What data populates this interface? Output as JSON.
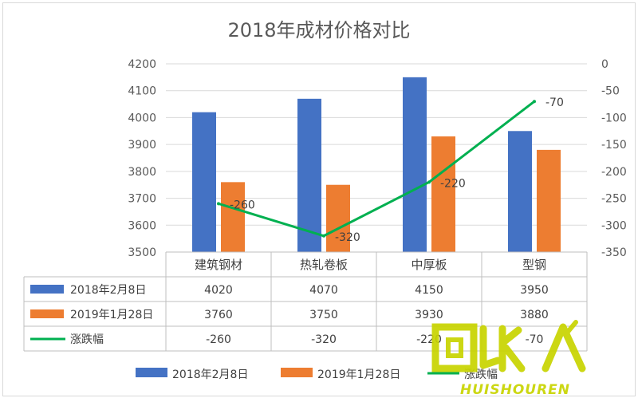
{
  "chart_data": {
    "type": "bar",
    "title": "2018年成材价格对比",
    "categories": [
      "建筑钢材",
      "热轧卷板",
      "中厚板",
      "型钢"
    ],
    "series": [
      {
        "name": "2018年2月8日",
        "kind": "bar",
        "axis": "left",
        "color": "#4472c4",
        "values": [
          4020,
          4070,
          4150,
          3950
        ]
      },
      {
        "name": "2019年1月28日",
        "kind": "bar",
        "axis": "left",
        "color": "#ed7d31",
        "values": [
          3760,
          3750,
          3930,
          3880
        ]
      },
      {
        "name": "涨跌幅",
        "kind": "line",
        "axis": "right",
        "color": "#00b050",
        "values": [
          -260,
          -320,
          -220,
          -70
        ]
      }
    ],
    "ylim_left": [
      3500,
      4200
    ],
    "yticks_left": [
      3500,
      3600,
      3700,
      3800,
      3900,
      4000,
      4100,
      4200
    ],
    "ylim_right": [
      -350,
      0
    ],
    "yticks_right": [
      0,
      -50,
      -100,
      -150,
      -200,
      -250,
      -300,
      -350
    ],
    "data_labels": [
      "-260",
      "-320",
      "-220",
      "-70"
    ],
    "table_values": [
      [
        "4020",
        "4070",
        "4150",
        "3950"
      ],
      [
        "3760",
        "3750",
        "3930",
        "3880"
      ],
      [
        "-260",
        "-320",
        "-220",
        "-70"
      ]
    ],
    "legend_position": "bottom",
    "grid": true
  },
  "watermark": {
    "text": "HUISHOUREN",
    "color": "#c8d400"
  }
}
